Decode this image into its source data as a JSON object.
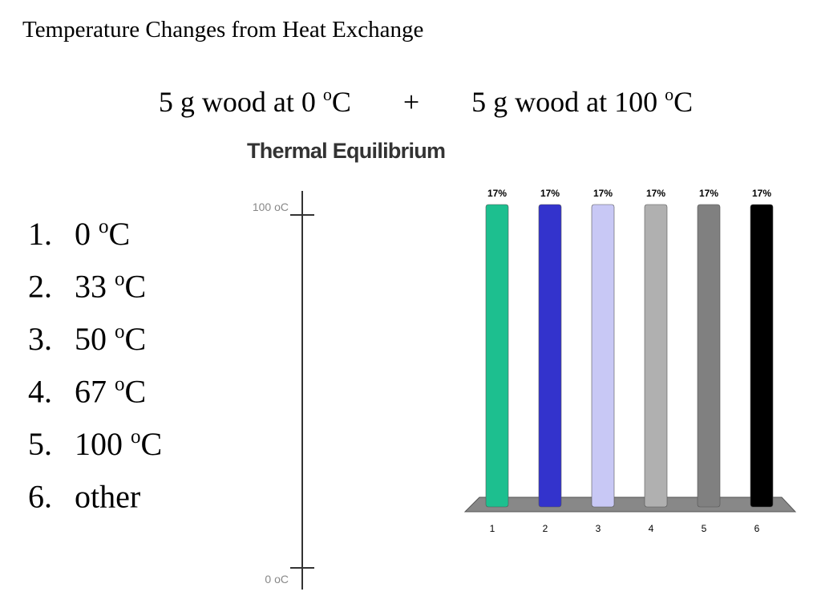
{
  "title": "Temperature Changes from Heat Exchange",
  "equation": {
    "left": {
      "text": "5 g wood at 0 ",
      "sup": "o",
      "unit": "C"
    },
    "plus": "+",
    "right": {
      "text": "5 g wood at 100 ",
      "sup": "o",
      "unit": "C"
    }
  },
  "thermometer": {
    "title": "Thermal Equilibrium",
    "top_label": "100 oC",
    "bottom_label": "0 oC"
  },
  "options": [
    {
      "number": "1.",
      "text": "0 ",
      "sup": "o",
      "unit": "C"
    },
    {
      "number": "2.",
      "text": "33 ",
      "sup": "o",
      "unit": "C"
    },
    {
      "number": "3.",
      "text": "50 ",
      "sup": "o",
      "unit": "C"
    },
    {
      "number": "4.",
      "text": "67 ",
      "sup": "o",
      "unit": "C"
    },
    {
      "number": "5.",
      "text": "100 ",
      "sup": "o",
      "unit": "C"
    },
    {
      "number": "6.",
      "text": "other"
    }
  ],
  "chart_data": {
    "type": "bar",
    "categories": [
      "1",
      "2",
      "3",
      "4",
      "5",
      "6"
    ],
    "values": [
      17,
      17,
      17,
      17,
      17,
      17
    ],
    "value_labels": [
      "17%",
      "17%",
      "17%",
      "17%",
      "17%",
      "17%"
    ],
    "colors": [
      "#1dbf8f",
      "#3333cc",
      "#c8c8f5",
      "#b0b0b0",
      "#808080",
      "#000000"
    ]
  }
}
